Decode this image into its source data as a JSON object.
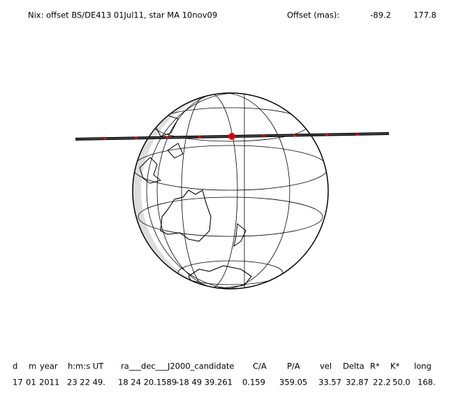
{
  "header": {
    "title": "Nix: offset BS/DE413 01Jul11, star MA 10nov09",
    "offset_label": "Offset (mas):",
    "offset_values": [
      "-89.2",
      "177.8"
    ]
  },
  "table": {
    "headers": [
      "d",
      "m",
      "year",
      "h:m:s UT",
      "ra___dec___J2000_candidate",
      "C/A",
      "P/A",
      "vel",
      "Delta",
      "R*",
      "K*",
      "long"
    ],
    "rows": [
      [
        "17",
        "01",
        "2011",
        "23 22 49.",
        "18 24 20.1589",
        "-18 49  39.261",
        "0.159",
        "359.05",
        "33.57",
        "32.87",
        "22.2",
        "50.0",
        "168."
      ]
    ]
  }
}
